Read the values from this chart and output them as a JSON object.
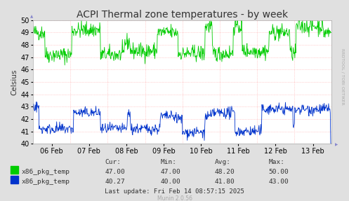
{
  "title": "ACPI Thermal zone temperatures - by week",
  "ylabel": "Celsius",
  "bg_color": "#e0e0e0",
  "plot_bg_color": "#ffffff",
  "grid_color": "#ffaaaa",
  "ylim": [
    40,
    50
  ],
  "yticks": [
    40,
    41,
    42,
    43,
    44,
    45,
    46,
    47,
    48,
    49,
    50
  ],
  "x_labels": [
    "06 Feb",
    "07 Feb",
    "08 Feb",
    "09 Feb",
    "10 Feb",
    "11 Feb",
    "12 Feb",
    "13 Feb"
  ],
  "green_color": "#00cc00",
  "blue_color": "#0033cc",
  "stats_headers": [
    "Cur:",
    "Min:",
    "Avg:",
    "Max:"
  ],
  "stats_green": [
    "47.00",
    "47.00",
    "48.20",
    "50.00"
  ],
  "stats_blue": [
    "40.27",
    "40.00",
    "41.80",
    "43.00"
  ],
  "last_update": "Last update: Fri Feb 14 08:57:15 2025",
  "munin_version": "Munin 2.0.56",
  "rrdtool_label": "RRDTOOL / TOBI OETIKER",
  "title_fontsize": 10,
  "axis_fontsize": 7,
  "n_points": 700
}
